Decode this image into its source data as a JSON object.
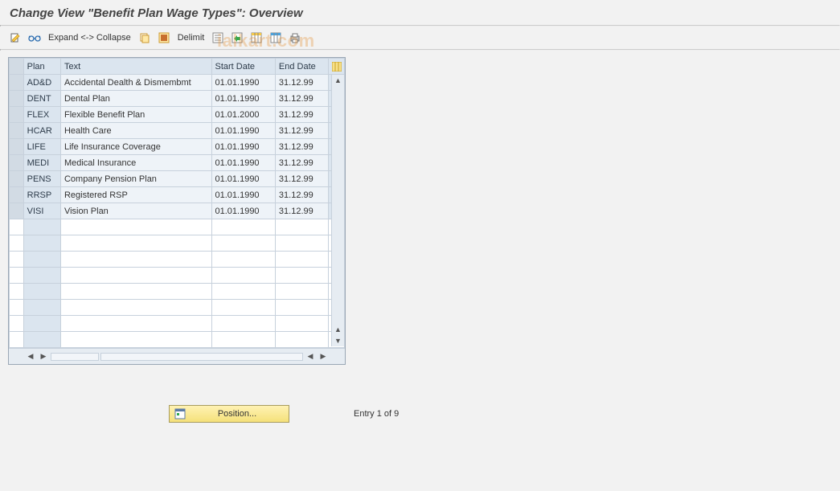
{
  "title": "Change View \"Benefit Plan Wage Types\": Overview",
  "watermark": "ialkart.com",
  "toolbar": {
    "expand_collapse": "Expand <-> Collapse",
    "delimit": "Delimit"
  },
  "columns": {
    "plan": "Plan",
    "text": "Text",
    "start_date": "Start Date",
    "end_date": "End Date"
  },
  "rows": [
    {
      "plan": "AD&D",
      "text": "Accidental Dealth & Dismembmt",
      "start": "01.01.1990",
      "end": "31.12.99"
    },
    {
      "plan": "DENT",
      "text": "Dental Plan",
      "start": "01.01.1990",
      "end": "31.12.99"
    },
    {
      "plan": "FLEX",
      "text": "Flexible Benefit Plan",
      "start": "01.01.2000",
      "end": "31.12.99"
    },
    {
      "plan": "HCAR",
      "text": "Health Care",
      "start": "01.01.1990",
      "end": "31.12.99"
    },
    {
      "plan": "LIFE",
      "text": "Life Insurance Coverage",
      "start": "01.01.1990",
      "end": "31.12.99"
    },
    {
      "plan": "MEDI",
      "text": "Medical Insurance",
      "start": "01.01.1990",
      "end": "31.12.99"
    },
    {
      "plan": "PENS",
      "text": "Company Pension Plan",
      "start": "01.01.1990",
      "end": "31.12.99"
    },
    {
      "plan": "RRSP",
      "text": "Registered RSP",
      "start": "01.01.1990",
      "end": "31.12.99"
    },
    {
      "plan": "VISI",
      "text": "Vision Plan",
      "start": "01.01.1990",
      "end": "31.12.99"
    }
  ],
  "empty_rows": 8,
  "footer": {
    "position_label": "Position...",
    "entry_text": "Entry 1 of 9"
  },
  "colors": {
    "header_bg": "#dbe5ef",
    "cell_ro_bg": "#eef3f8",
    "border": "#c7d1dc",
    "page_bg": "#f2f2f2",
    "btn_bg_top": "#fff2b3",
    "btn_bg_bot": "#f5e17a",
    "watermark": "rgba(230,150,60,0.35)"
  }
}
